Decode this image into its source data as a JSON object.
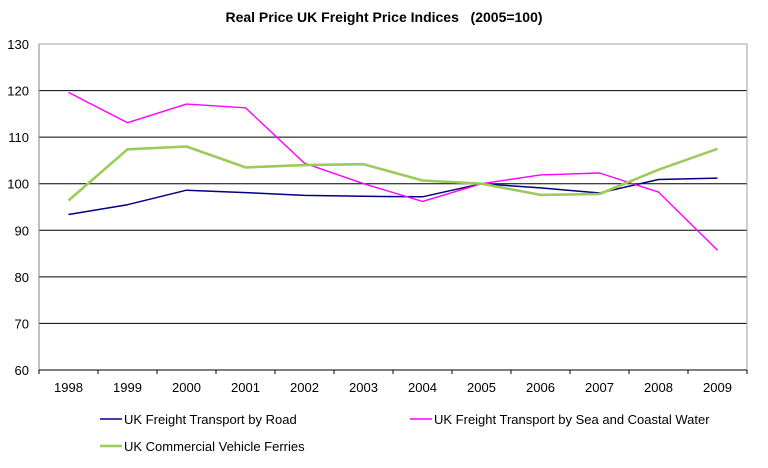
{
  "chart_data": {
    "type": "line",
    "title": "Real Price UK Freight Price Indices   (2005=100)",
    "xlabel": "",
    "ylabel": "",
    "categories": [
      "1998",
      "1999",
      "2000",
      "2001",
      "2002",
      "2003",
      "2004",
      "2005",
      "2006",
      "2007",
      "2008",
      "2009"
    ],
    "ylim": [
      60,
      130
    ],
    "yticks": [
      60,
      70,
      80,
      90,
      100,
      110,
      120,
      130
    ],
    "grid": true,
    "legend_position": "bottom",
    "series": [
      {
        "name": "UK Freight Transport by Road",
        "color": "#000080",
        "values": [
          93.4,
          95.5,
          98.6,
          98.1,
          97.5,
          97.3,
          97.2,
          100.0,
          99.1,
          98.0,
          100.9,
          101.2
        ]
      },
      {
        "name": "UK Freight Transport by Sea and Coastal Water",
        "color": "#FF00FF",
        "values": [
          119.6,
          113.1,
          117.1,
          116.3,
          104.4,
          100.0,
          96.2,
          100.0,
          101.9,
          102.3,
          98.2,
          85.7
        ]
      },
      {
        "name": "UK Commercial Vehicle Ferries",
        "color": "#9BCB5B",
        "values": [
          96.4,
          107.4,
          108.0,
          103.5,
          104.0,
          104.2,
          100.7,
          100.0,
          97.6,
          97.8,
          103.0,
          107.5
        ]
      }
    ]
  }
}
